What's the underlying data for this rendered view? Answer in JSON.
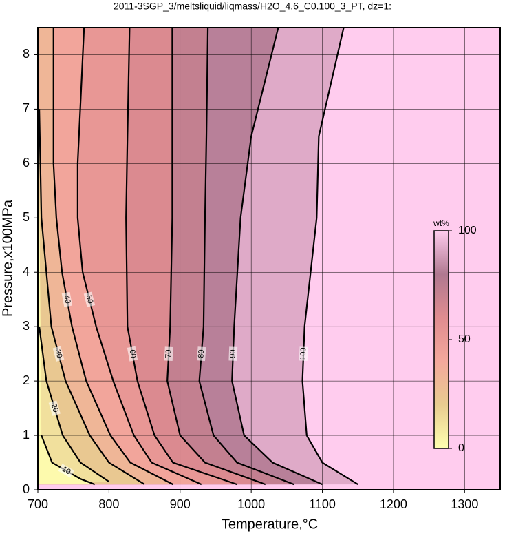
{
  "chart_data": {
    "type": "contour",
    "title": "2011-3SGP_3/meltsliquid/liqmass/H2O_4.6_C0.100_3_PT, dz=1:",
    "x_label": "Temperature,°C",
    "y_label": "Pressure,x100MPa",
    "xlim": [
      700,
      1350
    ],
    "ylim": [
      0,
      8.5
    ],
    "xticks": [
      700,
      800,
      900,
      1000,
      1100,
      1200,
      1300
    ],
    "yticks": [
      0,
      1,
      2,
      3,
      4,
      5,
      6,
      7,
      8
    ],
    "grid": true,
    "background_color": "#ffccee",
    "line_color": "#000000",
    "colormap": [
      "#ffffb0",
      "#e8cc90",
      "#f4a89c",
      "#e08c90",
      "#b07890",
      "#ffccee"
    ],
    "contours": [
      {
        "level": 100,
        "x": [
          1130,
          1095,
          1092,
          1075,
          1072,
          1078,
          1100,
          1150
        ],
        "y": [
          8.5,
          6.5,
          5,
          3,
          2,
          1,
          0.5,
          0.1
        ]
      },
      {
        "level": 90,
        "x": [
          1038,
          1000,
          985,
          976,
          973,
          990,
          1030,
          1100
        ],
        "y": [
          8.5,
          6.5,
          5,
          3,
          2,
          1,
          0.5,
          0.1
        ]
      },
      {
        "level": 80,
        "x": [
          939,
          937,
          935,
          933,
          927,
          947,
          980,
          1060
        ],
        "y": [
          8.5,
          6.5,
          5,
          3,
          2,
          1,
          0.5,
          0.1
        ]
      },
      {
        "level": 70,
        "x": [
          889,
          889,
          889,
          886,
          882,
          900,
          935,
          1020
        ],
        "y": [
          8.5,
          6.5,
          5,
          3,
          2,
          1,
          0.5,
          0.1
        ]
      },
      {
        "level": 60,
        "x": [
          829,
          826,
          824,
          826,
          840,
          864,
          890,
          980
        ],
        "y": [
          8.5,
          6.5,
          5,
          3,
          2,
          1,
          0.5,
          0.1
        ]
      },
      {
        "level": 50,
        "x": [
          765,
          756,
          756,
          763,
          782,
          806,
          835,
          860,
          930
        ],
        "y": [
          8.5,
          6,
          5,
          4,
          3,
          2,
          1,
          0.5,
          0.1
        ]
      },
      {
        "level": 40,
        "x": [
          722,
          722,
          726,
          734,
          748,
          768,
          802,
          830,
          890
        ],
        "y": [
          8.5,
          6,
          5,
          4,
          3,
          2,
          1,
          0.5,
          0.1
        ]
      },
      {
        "level": 30,
        "x": [
          702,
          705,
          712,
          719,
          739,
          773,
          800,
          850
        ],
        "y": [
          7,
          5,
          4,
          3,
          2,
          1,
          0.5,
          0.1
        ]
      },
      {
        "level": 20,
        "x": [
          702,
          712,
          735,
          760,
          800
        ],
        "y": [
          3,
          2,
          1,
          0.5,
          0.15
        ]
      },
      {
        "level": 10,
        "x": [
          705,
          720,
          760,
          780
        ],
        "y": [
          1,
          0.5,
          0.2,
          0.1
        ]
      }
    ],
    "colorbar": {
      "label": "wt%",
      "range": [
        0,
        100
      ],
      "ticks": [
        0,
        50,
        100
      ]
    }
  }
}
